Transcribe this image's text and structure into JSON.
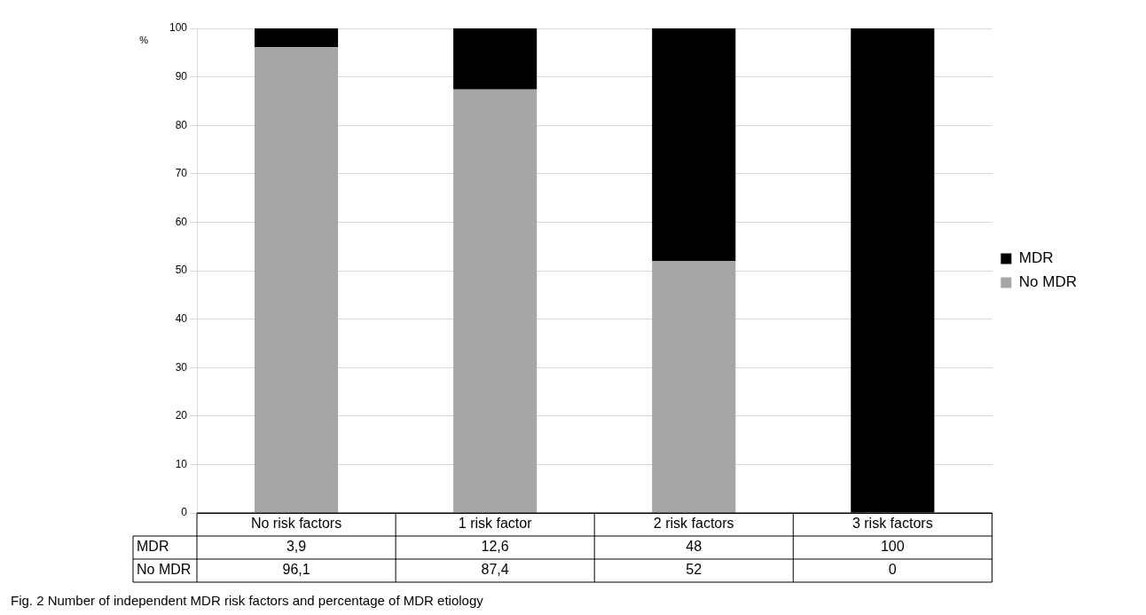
{
  "chart_data": {
    "type": "bar",
    "stacked": true,
    "categories": [
      "No risk factors",
      "1 risk factor",
      "2 risk factors",
      "3 risk factors"
    ],
    "series": [
      {
        "name": "No MDR",
        "color": "#a6a6a6",
        "values": [
          96.1,
          87.4,
          52,
          0
        ],
        "value_labels": [
          "96,1",
          "87,4",
          "52",
          "0"
        ]
      },
      {
        "name": "MDR",
        "color": "#000000",
        "values": [
          3.9,
          12.6,
          48,
          100
        ],
        "value_labels": [
          "3,9",
          "12,6",
          "48",
          "100"
        ]
      }
    ],
    "ylabel": "%",
    "ylim": [
      0,
      100
    ],
    "yticks": [
      0,
      10,
      20,
      30,
      40,
      50,
      60,
      70,
      80,
      90,
      100
    ],
    "grid": "y",
    "legend": "right",
    "annotations": [
      "Fig. 2 Number of independent MDR risk factors and percentage of MDR etiology"
    ]
  }
}
